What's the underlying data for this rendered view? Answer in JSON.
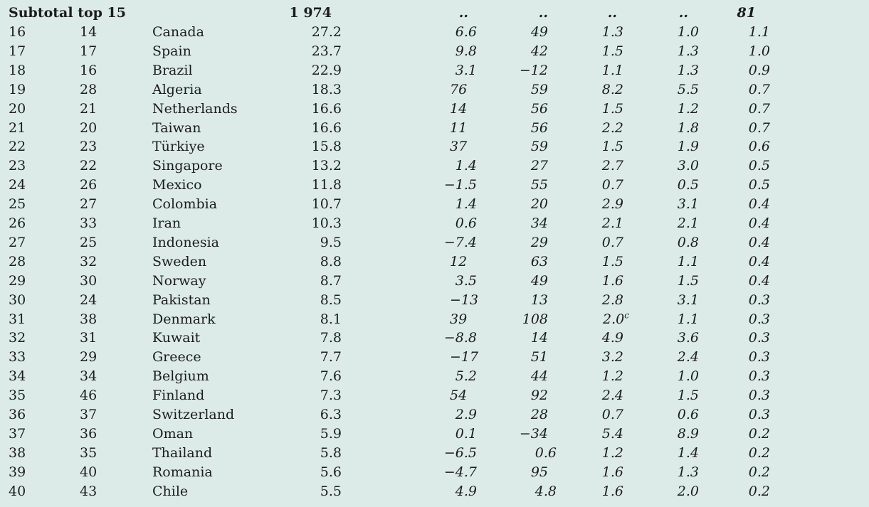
{
  "subtotal": {
    "label": "Subtotal top 15",
    "value": "1 974",
    "g1": "..",
    "g2": "..",
    "g3": "..",
    "g4": "..",
    "g5": "81"
  },
  "rows": [
    {
      "rank": "16",
      "prev": "14",
      "country": "Canada",
      "value": "27.2",
      "g1": "6.6",
      "g2": "49",
      "g3": "1.3",
      "g4": "1.0",
      "g5": "1.1"
    },
    {
      "rank": "17",
      "prev": "17",
      "country": "Spain",
      "value": "23.7",
      "g1": "9.8",
      "g2": "42",
      "g3": "1.5",
      "g4": "1.3",
      "g5": "1.0"
    },
    {
      "rank": "18",
      "prev": "16",
      "country": "Brazil",
      "value": "22.9",
      "g1": "3.1",
      "g2": "−12",
      "g3": "1.1",
      "g4": "1.3",
      "g5": "0.9"
    },
    {
      "rank": "19",
      "prev": "28",
      "country": "Algeria",
      "value": "18.3",
      "g1": "76",
      "g2": "59",
      "g3": "8.2",
      "g4": "5.5",
      "g5": "0.7"
    },
    {
      "rank": "20",
      "prev": "21",
      "country": "Netherlands",
      "value": "16.6",
      "g1": "14",
      "g2": "56",
      "g3": "1.5",
      "g4": "1.2",
      "g5": "0.7"
    },
    {
      "rank": "21",
      "prev": "20",
      "country": "Taiwan",
      "value": "16.6",
      "g1": "11",
      "g2": "56",
      "g3": "2.2",
      "g4": "1.8",
      "g5": "0.7"
    },
    {
      "rank": "22",
      "prev": "23",
      "country": "Türkiye",
      "value": "15.8",
      "g1": "37",
      "g2": "59",
      "g3": "1.5",
      "g4": "1.9",
      "g5": "0.6"
    },
    {
      "rank": "23",
      "prev": "22",
      "country": "Singapore",
      "value": "13.2",
      "g1": "1.4",
      "g2": "27",
      "g3": "2.7",
      "g4": "3.0",
      "g5": "0.5"
    },
    {
      "rank": "24",
      "prev": "26",
      "country": "Mexico",
      "value": "11.8",
      "g1": "−1.5",
      "g2": "55",
      "g3": "0.7",
      "g4": "0.5",
      "g5": "0.5"
    },
    {
      "rank": "25",
      "prev": "27",
      "country": "Colombia",
      "value": "10.7",
      "g1": "1.4",
      "g2": "20",
      "g3": "2.9",
      "g4": "3.1",
      "g5": "0.4"
    },
    {
      "rank": "26",
      "prev": "33",
      "country": "Iran",
      "value": "10.3",
      "g1": "0.6",
      "g2": "34",
      "g3": "2.1",
      "g4": "2.1",
      "g5": "0.4"
    },
    {
      "rank": "27",
      "prev": "25",
      "country": "Indonesia",
      "value": "9.5",
      "g1": "−7.4",
      "g2": "29",
      "g3": "0.7",
      "g4": "0.8",
      "g5": "0.4"
    },
    {
      "rank": "28",
      "prev": "32",
      "country": "Sweden",
      "value": "8.8",
      "g1": "12",
      "g2": "63",
      "g3": "1.5",
      "g4": "1.1",
      "g5": "0.4"
    },
    {
      "rank": "29",
      "prev": "30",
      "country": "Norway",
      "value": "8.7",
      "g1": "3.5",
      "g2": "49",
      "g3": "1.6",
      "g4": "1.5",
      "g5": "0.4"
    },
    {
      "rank": "30",
      "prev": "24",
      "country": "Pakistan",
      "value": "8.5",
      "g1": "−13",
      "g2": "13",
      "g3": "2.8",
      "g4": "3.1",
      "g5": "0.3"
    },
    {
      "rank": "31",
      "prev": "38",
      "country": "Denmark",
      "value": "8.1",
      "g1": "39",
      "g2": "108",
      "g3": "2.0",
      "g3sup": "c",
      "g4": "1.1",
      "g5": "0.3"
    },
    {
      "rank": "32",
      "prev": "31",
      "country": "Kuwait",
      "value": "7.8",
      "g1": "−8.8",
      "g2": "14",
      "g3": "4.9",
      "g4": "3.6",
      "g5": "0.3"
    },
    {
      "rank": "33",
      "prev": "29",
      "country": "Greece",
      "value": "7.7",
      "g1": "−17",
      "g2": "51",
      "g3": "3.2",
      "g4": "2.4",
      "g5": "0.3"
    },
    {
      "rank": "34",
      "prev": "34",
      "country": "Belgium",
      "value": "7.6",
      "g1": "5.2",
      "g2": "44",
      "g3": "1.2",
      "g4": "1.0",
      "g5": "0.3"
    },
    {
      "rank": "35",
      "prev": "46",
      "country": "Finland",
      "value": "7.3",
      "g1": "54",
      "g2": "92",
      "g3": "2.4",
      "g4": "1.5",
      "g5": "0.3"
    },
    {
      "rank": "36",
      "prev": "37",
      "country": "Switzerland",
      "value": "6.3",
      "g1": "2.9",
      "g2": "28",
      "g3": "0.7",
      "g4": "0.6",
      "g5": "0.3"
    },
    {
      "rank": "37",
      "prev": "36",
      "country": "Oman",
      "value": "5.9",
      "g1": "0.1",
      "g2": "−34",
      "g3": "5.4",
      "g4": "8.9",
      "g5": "0.2"
    },
    {
      "rank": "38",
      "prev": "35",
      "country": "Thailand",
      "value": "5.8",
      "g1": "−6.5",
      "g2": "0.6",
      "g3": "1.2",
      "g4": "1.4",
      "g5": "0.2"
    },
    {
      "rank": "39",
      "prev": "40",
      "country": "Romania",
      "value": "5.6",
      "g1": "−4.7",
      "g2": "95",
      "g3": "1.6",
      "g4": "1.3",
      "g5": "0.2"
    },
    {
      "rank": "40",
      "prev": "43",
      "country": "Chile",
      "value": "5.5",
      "g1": "4.9",
      "g2": "4.8",
      "g3": "1.6",
      "g4": "2.0",
      "g5": "0.2"
    }
  ]
}
